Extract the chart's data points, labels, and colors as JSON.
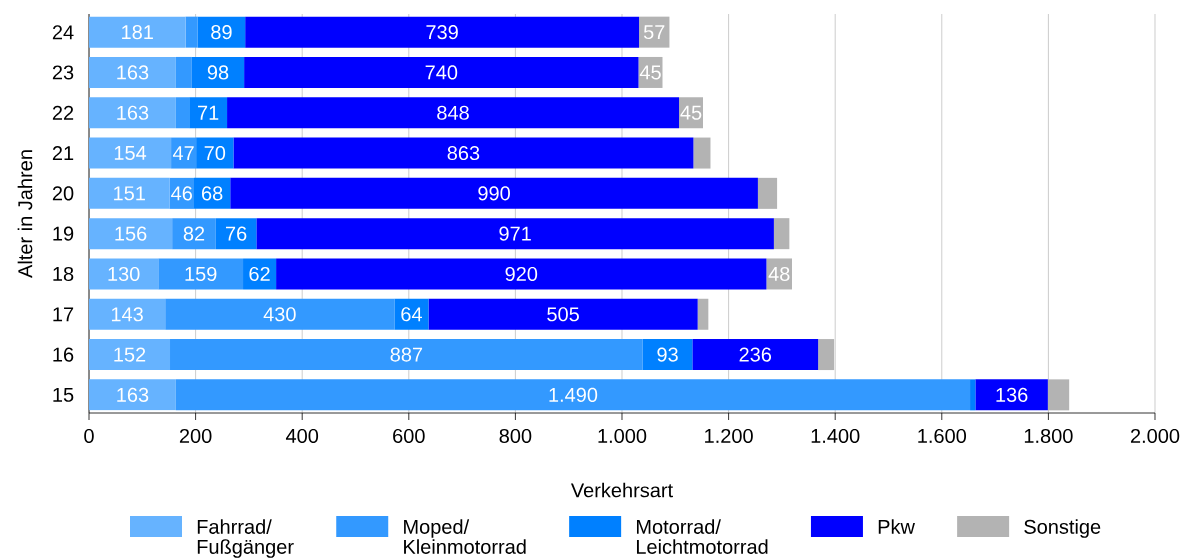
{
  "chart_data": {
    "type": "bar",
    "orientation": "horizontal",
    "stacked": true,
    "categories": [
      "24",
      "23",
      "22",
      "21",
      "20",
      "19",
      "18",
      "17",
      "16",
      "15"
    ],
    "series": [
      {
        "name": "Fahrrad/ Fußgänger",
        "color": "#66b3ff",
        "values": [
          181,
          163,
          163,
          154,
          151,
          156,
          130,
          143,
          152,
          163
        ],
        "value_labels": [
          "181",
          "163",
          "163",
          "154",
          "151",
          "156",
          "130",
          "143",
          "152",
          "163"
        ]
      },
      {
        "name": "Moped/ Kleinmotorrad",
        "color": "#3399ff",
        "values": [
          23,
          30,
          25,
          47,
          46,
          82,
          159,
          430,
          887,
          1490
        ],
        "value_labels": [
          null,
          null,
          null,
          "47",
          "46",
          "82",
          "159",
          "430",
          "887",
          "1.490"
        ]
      },
      {
        "name": "Motorrad/ Leichtmotorrad",
        "color": "#0080ff",
        "values": [
          89,
          98,
          71,
          70,
          68,
          76,
          62,
          64,
          93,
          10
        ],
        "value_labels": [
          "89",
          "98",
          "71",
          "70",
          "68",
          "76",
          "62",
          "64",
          "93",
          null
        ]
      },
      {
        "name": "Pkw",
        "color": "#0000ff",
        "values": [
          739,
          740,
          848,
          863,
          990,
          971,
          920,
          505,
          236,
          136
        ],
        "value_labels": [
          "739",
          "740",
          "848",
          "863",
          "990",
          "971",
          "920",
          "505",
          "236",
          "136"
        ]
      },
      {
        "name": "Sonstige",
        "color": "#b3b3b3",
        "values": [
          57,
          45,
          45,
          32,
          36,
          29,
          48,
          20,
          30,
          40
        ],
        "value_labels": [
          "57",
          "45",
          "45",
          null,
          null,
          null,
          "48",
          null,
          null,
          null
        ]
      }
    ],
    "xlim": [
      0,
      2000
    ],
    "xticks": [
      0,
      200,
      400,
      600,
      800,
      {
        "value": 1000,
        "label": "1.000"
      },
      {
        "value": 1200,
        "label": "1.200"
      },
      {
        "value": 1400,
        "label": "1.400"
      },
      {
        "value": 1600,
        "label": "1.600"
      },
      {
        "value": 1800,
        "label": "1.800"
      },
      {
        "value": 2000,
        "label": "2.000"
      }
    ],
    "xlabel": "Verkehrsart",
    "ylabel": "Alter in Jahren",
    "grid": "x",
    "legend": "bottom"
  }
}
